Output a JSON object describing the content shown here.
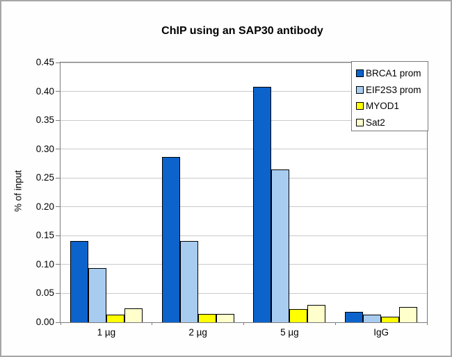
{
  "chart_data": {
    "type": "bar",
    "title": "ChIP using an SAP30 antibody",
    "xlabel": "",
    "ylabel": "% of input",
    "categories": [
      "1 µg",
      "2 µg",
      "5 µg",
      "IgG"
    ],
    "series": [
      {
        "name": "BRCA1 prom",
        "color": "#0b63cb",
        "values": [
          0.141,
          0.286,
          0.408,
          0.018
        ]
      },
      {
        "name": "EIF2S3 prom",
        "color": "#a8ccf0",
        "values": [
          0.094,
          0.141,
          0.265,
          0.013
        ]
      },
      {
        "name": "MYOD1",
        "color": "#ffff00",
        "values": [
          0.013,
          0.015,
          0.023,
          0.01
        ]
      },
      {
        "name": "Sat2",
        "color": "#ffffcc",
        "values": [
          0.024,
          0.015,
          0.03,
          0.027
        ]
      }
    ],
    "ylim": [
      0,
      0.45
    ],
    "ytick_step": 0.05,
    "ytick_labels": [
      "0.00",
      "0.05",
      "0.10",
      "0.15",
      "0.20",
      "0.25",
      "0.30",
      "0.35",
      "0.40",
      "0.45"
    ],
    "grid": true,
    "legend_position": "top-right",
    "colors": {
      "grid": "#c9c9c9",
      "axis": "#7a7a7a",
      "bar_border": "#000000",
      "background": "#ffffff",
      "figure_border": "#a6a6a6"
    }
  }
}
